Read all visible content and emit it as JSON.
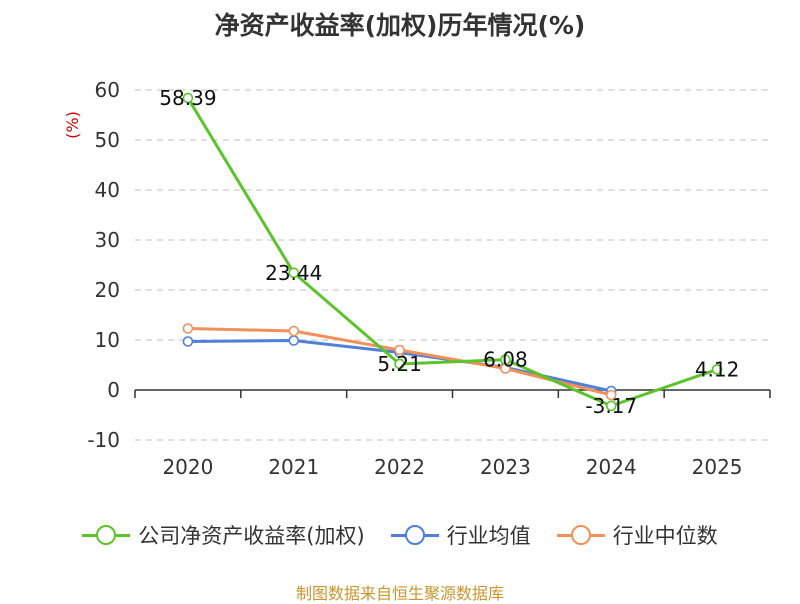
{
  "chart_data": {
    "type": "line",
    "title": "净资产收益率(加权)历年情况(%)",
    "ylabel": "(%)",
    "xlabel": "",
    "categories": [
      "2020",
      "2021",
      "2022",
      "2023",
      "2024",
      "2025"
    ],
    "ylim": [
      -10,
      60
    ],
    "yticks": [
      -10,
      0,
      10,
      20,
      30,
      40,
      50,
      60
    ],
    "grid": true,
    "legend_position": "bottom",
    "series": [
      {
        "name": "公司净资产收益率(加权)",
        "color": "#5bc42a",
        "values": [
          58.39,
          23.44,
          5.21,
          6.08,
          -3.17,
          4.12
        ],
        "labels": [
          "58.39",
          "23.44",
          "5.21",
          "6.08",
          "-3.17",
          "4.12"
        ]
      },
      {
        "name": "行业均值",
        "color": "#4f7fd9",
        "values": [
          9.7,
          9.9,
          7.5,
          4.5,
          -0.2,
          null
        ]
      },
      {
        "name": "行业中位数",
        "color": "#f0905a",
        "values": [
          12.3,
          11.8,
          8.0,
          4.3,
          -1.0,
          null
        ]
      }
    ]
  },
  "source_note": "制图数据来自恒生聚源数据库"
}
